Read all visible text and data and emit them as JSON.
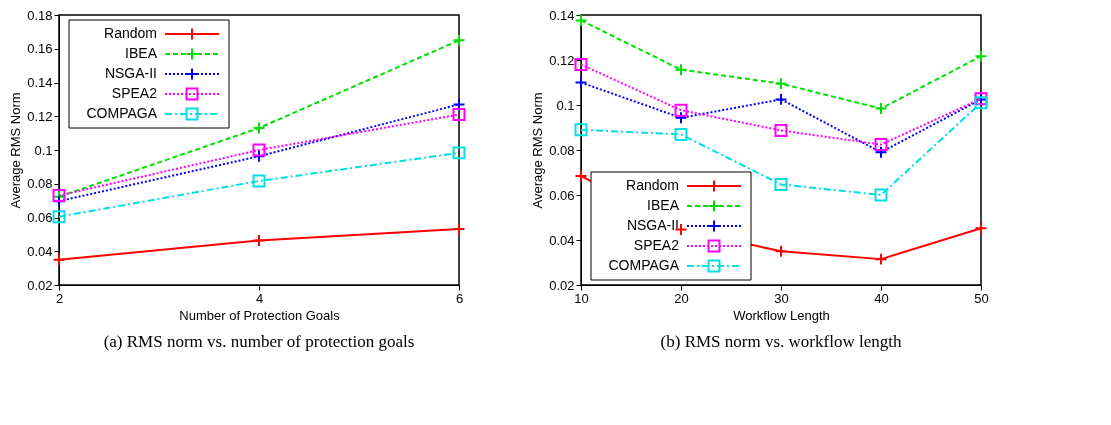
{
  "chart_data": [
    {
      "type": "line",
      "x": [
        2,
        4,
        6
      ],
      "xlim": [
        2,
        6
      ],
      "xticks": [
        2,
        4,
        6
      ],
      "ylim": [
        0.02,
        0.18
      ],
      "yticks": [
        0.02,
        0.04,
        0.06,
        0.08,
        0.1,
        0.12,
        0.14,
        0.16,
        0.18
      ],
      "xlabel": "Number of Protection Goals",
      "ylabel": "Average RMS Norm",
      "legend": "top left",
      "grid": false,
      "annotations": [
        "(a)  RMS norm vs. number of protection goals"
      ],
      "series": [
        {
          "name": "Random",
          "color": "#ff0000",
          "marker": "cross",
          "line_style": "solid",
          "values": [
            0.035,
            0.0464,
            0.0532
          ]
        },
        {
          "name": "IBEA",
          "color": "#00e000",
          "marker": "cross",
          "line_style": "dashed",
          "values": [
            0.0723,
            0.113,
            0.165
          ]
        },
        {
          "name": "NSGA-II",
          "color": "#0000ff",
          "marker": "cross",
          "line_style": "dotted",
          "values": [
            0.0697,
            0.0963,
            0.127
          ]
        },
        {
          "name": "SPEA2",
          "color": "#ff00ff",
          "marker": "square",
          "line_style": "dotted",
          "values": [
            0.073,
            0.1,
            0.121
          ]
        },
        {
          "name": "COMPAGA",
          "color": "#00e0e0",
          "marker": "square",
          "line_style": "dashdot",
          "values": [
            0.0605,
            0.0816,
            0.0983
          ]
        }
      ]
    },
    {
      "type": "line",
      "x": [
        10,
        20,
        30,
        40,
        50
      ],
      "xlim": [
        10,
        50
      ],
      "xticks": [
        10,
        20,
        30,
        40,
        50
      ],
      "ylim": [
        0.02,
        0.14
      ],
      "yticks": [
        0.02,
        0.04,
        0.06,
        0.08,
        0.1,
        0.12,
        0.14
      ],
      "xlabel": "Workflow Length",
      "ylabel": "Average RMS Norm",
      "legend": "bottom left",
      "grid": false,
      "annotations": [
        "(b)  RMS norm vs. workflow length"
      ],
      "series": [
        {
          "name": "Random",
          "color": "#ff0000",
          "marker": "cross",
          "line_style": "solid",
          "values": [
            0.0685,
            0.0447,
            0.035,
            0.0315,
            0.0452
          ]
        },
        {
          "name": "IBEA",
          "color": "#00e000",
          "marker": "cross",
          "line_style": "dashed",
          "values": [
            0.1376,
            0.1157,
            0.1095,
            0.0984,
            0.1217
          ]
        },
        {
          "name": "NSGA-II",
          "color": "#0000ff",
          "marker": "cross",
          "line_style": "dotted",
          "values": [
            0.11,
            0.0943,
            0.1025,
            0.079,
            0.1025
          ]
        },
        {
          "name": "SPEA2",
          "color": "#ff00ff",
          "marker": "square",
          "line_style": "dotted",
          "values": [
            0.118,
            0.0977,
            0.0887,
            0.0824,
            0.1028
          ]
        },
        {
          "name": "COMPAGA",
          "color": "#00e0e0",
          "marker": "square",
          "line_style": "dashdot",
          "values": [
            0.089,
            0.0869,
            0.0647,
            0.06,
            0.101
          ]
        }
      ]
    }
  ]
}
